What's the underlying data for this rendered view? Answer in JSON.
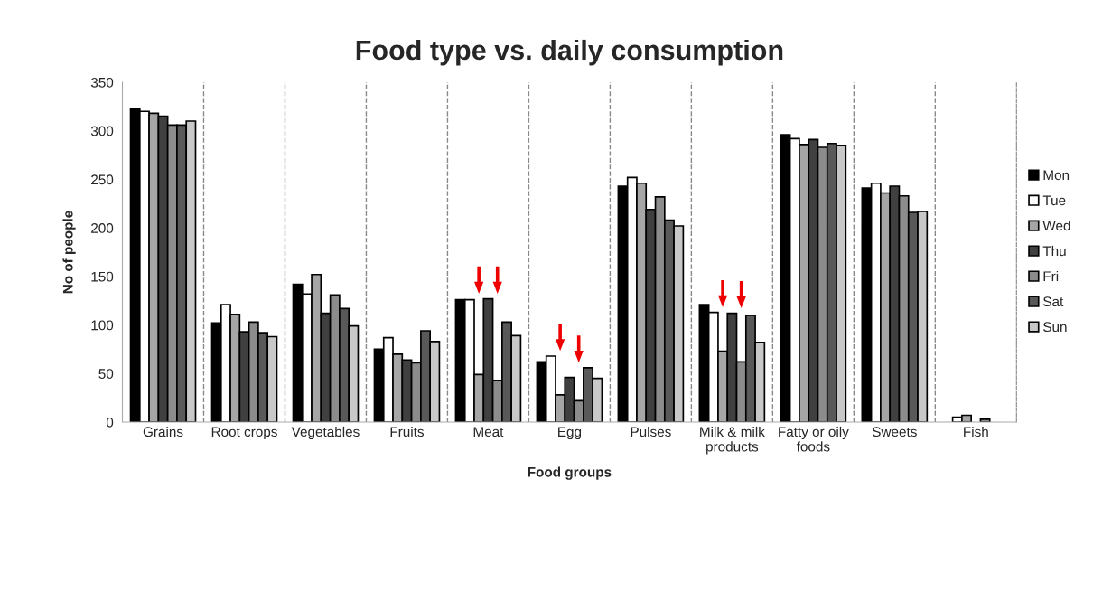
{
  "chart_data": {
    "type": "bar",
    "title": "Food type vs. daily consumption",
    "xlabel": "Food groups",
    "ylabel": "No of people",
    "categories": [
      "Grains",
      "Root crops",
      "Vegetables",
      "Fruits",
      "Meat",
      "Egg",
      "Pulses",
      "Milk & milk\nproducts",
      "Fatty or oily\nfoods",
      "Sweets",
      "Fish"
    ],
    "series": [
      {
        "name": "Mon",
        "color": "#000000",
        "values": [
          323,
          102,
          142,
          75,
          126,
          62,
          243,
          121,
          296,
          241,
          null
        ]
      },
      {
        "name": "Tue",
        "color": "#ffffff",
        "values": [
          320,
          121,
          132,
          87,
          126,
          68,
          252,
          113,
          292,
          246,
          5
        ]
      },
      {
        "name": "Wed",
        "color": "#a6a6a6",
        "values": [
          318,
          111,
          152,
          70,
          49,
          28,
          246,
          73,
          286,
          236,
          7
        ]
      },
      {
        "name": "Thu",
        "color": "#404040",
        "values": [
          315,
          93,
          112,
          64,
          127,
          46,
          219,
          112,
          291,
          243,
          null
        ]
      },
      {
        "name": "Fri",
        "color": "#8c8c8c",
        "values": [
          306,
          103,
          131,
          61,
          43,
          22,
          232,
          62,
          283,
          233,
          3
        ]
      },
      {
        "name": "Sat",
        "color": "#595959",
        "values": [
          306,
          92,
          117,
          94,
          103,
          56,
          208,
          110,
          287,
          216,
          null
        ]
      },
      {
        "name": "Sun",
        "color": "#c8c8c8",
        "values": [
          310,
          88,
          99,
          83,
          89,
          45,
          202,
          82,
          285,
          217,
          null
        ]
      }
    ],
    "ylim": [
      0,
      350
    ],
    "yticks": [
      0,
      50,
      100,
      150,
      200,
      250,
      300,
      350
    ],
    "grid": "x",
    "legend": "right"
  }
}
